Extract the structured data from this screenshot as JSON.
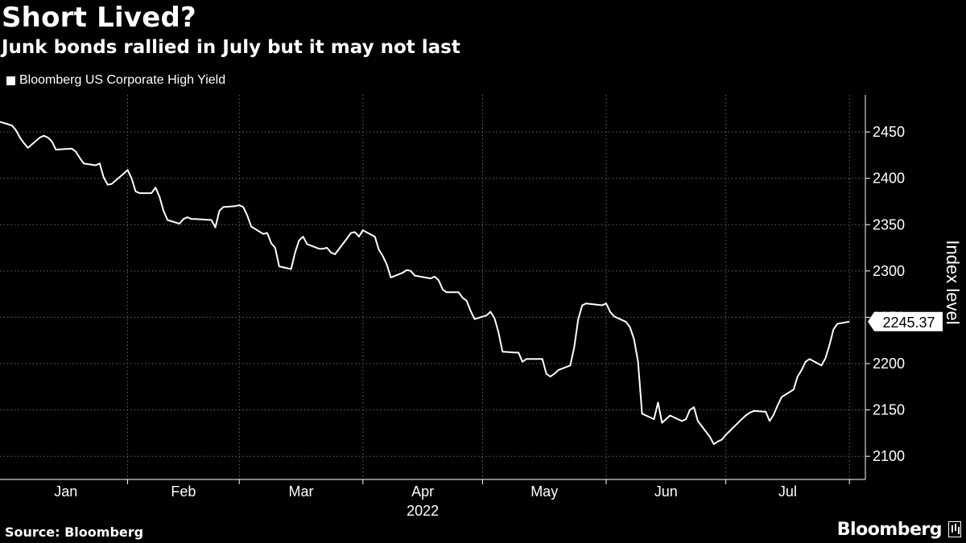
{
  "header": {
    "title": "Short Lived?",
    "subtitle": "Junk bonds rallied in July but it may not last"
  },
  "footer": {
    "source": "Source: Bloomberg",
    "brand": "Bloomberg"
  },
  "colors": {
    "background": "#000000",
    "line": "#ffffff",
    "grid": "#666666"
  },
  "chart_data": {
    "type": "line",
    "title": "Short Lived?",
    "subtitle": "Junk bonds rallied in July but it may not last",
    "ylabel": "Index level",
    "xlabel": "2022",
    "ylim": [
      2075,
      2490
    ],
    "yticks": [
      2100,
      2150,
      2200,
      2250,
      2300,
      2350,
      2400,
      2450
    ],
    "x_ticks": [
      {
        "date": "2022-01-01",
        "label": "Jan"
      },
      {
        "date": "2022-02-01",
        "label": "Feb"
      },
      {
        "date": "2022-03-01",
        "label": "Mar"
      },
      {
        "date": "2022-04-01",
        "label": "Apr"
      },
      {
        "date": "2022-05-01",
        "label": "May"
      },
      {
        "date": "2022-06-01",
        "label": "Jun"
      },
      {
        "date": "2022-07-01",
        "label": "Jul"
      }
    ],
    "x_range": [
      "2021-12-31",
      "2022-08-05"
    ],
    "grid": true,
    "legend": "top-left",
    "last_value_label": "2245.37",
    "series": [
      {
        "name": "Bloomberg US Corporate High Yield",
        "color": "#ffffff",
        "points": [
          [
            "2021-12-31",
            2461
          ],
          [
            "2022-01-03",
            2457
          ],
          [
            "2022-01-04",
            2452
          ],
          [
            "2022-01-05",
            2444
          ],
          [
            "2022-01-06",
            2438
          ],
          [
            "2022-01-07",
            2433
          ],
          [
            "2022-01-10",
            2444
          ],
          [
            "2022-01-11",
            2446
          ],
          [
            "2022-01-12",
            2444
          ],
          [
            "2022-01-13",
            2440
          ],
          [
            "2022-01-14",
            2431
          ],
          [
            "2022-01-18",
            2432
          ],
          [
            "2022-01-19",
            2429
          ],
          [
            "2022-01-20",
            2422
          ],
          [
            "2022-01-21",
            2416
          ],
          [
            "2022-01-24",
            2414
          ],
          [
            "2022-01-25",
            2416
          ],
          [
            "2022-01-26",
            2401
          ],
          [
            "2022-01-27",
            2393
          ],
          [
            "2022-01-28",
            2394
          ],
          [
            "2022-01-31",
            2405
          ],
          [
            "2022-02-01",
            2409
          ],
          [
            "2022-02-02",
            2400
          ],
          [
            "2022-02-03",
            2386
          ],
          [
            "2022-02-04",
            2384
          ],
          [
            "2022-02-07",
            2384
          ],
          [
            "2022-02-08",
            2390
          ],
          [
            "2022-02-09",
            2380
          ],
          [
            "2022-02-10",
            2365
          ],
          [
            "2022-02-11",
            2355
          ],
          [
            "2022-02-14",
            2351
          ],
          [
            "2022-02-15",
            2356
          ],
          [
            "2022-02-16",
            2358
          ],
          [
            "2022-02-17",
            2356
          ],
          [
            "2022-02-18",
            2356
          ],
          [
            "2022-02-22",
            2355
          ],
          [
            "2022-02-23",
            2347
          ],
          [
            "2022-02-24",
            2365
          ],
          [
            "2022-02-25",
            2369
          ],
          [
            "2022-02-28",
            2370
          ],
          [
            "2022-03-01",
            2371
          ],
          [
            "2022-03-02",
            2369
          ],
          [
            "2022-03-03",
            2360
          ],
          [
            "2022-03-04",
            2348
          ],
          [
            "2022-03-07",
            2340
          ],
          [
            "2022-03-08",
            2341
          ],
          [
            "2022-03-09",
            2330
          ],
          [
            "2022-03-10",
            2325
          ],
          [
            "2022-03-11",
            2305
          ],
          [
            "2022-03-14",
            2302
          ],
          [
            "2022-03-15",
            2320
          ],
          [
            "2022-03-16",
            2333
          ],
          [
            "2022-03-17",
            2337
          ],
          [
            "2022-03-18",
            2329
          ],
          [
            "2022-03-21",
            2324
          ],
          [
            "2022-03-22",
            2324
          ],
          [
            "2022-03-23",
            2325
          ],
          [
            "2022-03-24",
            2320
          ],
          [
            "2022-03-25",
            2318
          ],
          [
            "2022-03-28",
            2335
          ],
          [
            "2022-03-29",
            2341
          ],
          [
            "2022-03-30",
            2342
          ],
          [
            "2022-03-31",
            2337
          ],
          [
            "2022-04-01",
            2344
          ],
          [
            "2022-04-04",
            2337
          ],
          [
            "2022-04-05",
            2323
          ],
          [
            "2022-04-06",
            2316
          ],
          [
            "2022-04-07",
            2307
          ],
          [
            "2022-04-08",
            2293
          ],
          [
            "2022-04-11",
            2298
          ],
          [
            "2022-04-12",
            2301
          ],
          [
            "2022-04-13",
            2300
          ],
          [
            "2022-04-14",
            2295
          ],
          [
            "2022-04-18",
            2292
          ],
          [
            "2022-04-19",
            2294
          ],
          [
            "2022-04-20",
            2290
          ],
          [
            "2022-04-21",
            2280
          ],
          [
            "2022-04-22",
            2277
          ],
          [
            "2022-04-25",
            2277
          ],
          [
            "2022-04-26",
            2271
          ],
          [
            "2022-04-27",
            2268
          ],
          [
            "2022-04-28",
            2257
          ],
          [
            "2022-04-29",
            2248
          ],
          [
            "2022-05-02",
            2252
          ],
          [
            "2022-05-03",
            2256
          ],
          [
            "2022-05-04",
            2249
          ],
          [
            "2022-05-05",
            2234
          ],
          [
            "2022-05-06",
            2213
          ],
          [
            "2022-05-09",
            2212
          ],
          [
            "2022-05-10",
            2212
          ],
          [
            "2022-05-11",
            2202
          ],
          [
            "2022-05-12",
            2205
          ],
          [
            "2022-05-13",
            2205
          ],
          [
            "2022-05-16",
            2205
          ],
          [
            "2022-05-17",
            2189
          ],
          [
            "2022-05-18",
            2186
          ],
          [
            "2022-05-19",
            2189
          ],
          [
            "2022-05-20",
            2193
          ],
          [
            "2022-05-23",
            2198
          ],
          [
            "2022-05-24",
            2218
          ],
          [
            "2022-05-25",
            2248
          ],
          [
            "2022-05-26",
            2263
          ],
          [
            "2022-05-27",
            2265
          ],
          [
            "2022-05-31",
            2263
          ],
          [
            "2022-06-01",
            2265
          ],
          [
            "2022-06-02",
            2256
          ],
          [
            "2022-06-03",
            2251
          ],
          [
            "2022-06-06",
            2245
          ],
          [
            "2022-06-07",
            2239
          ],
          [
            "2022-06-08",
            2226
          ],
          [
            "2022-06-09",
            2202
          ],
          [
            "2022-06-10",
            2146
          ],
          [
            "2022-06-13",
            2140
          ],
          [
            "2022-06-14",
            2158
          ],
          [
            "2022-06-15",
            2136
          ],
          [
            "2022-06-16",
            2140
          ],
          [
            "2022-06-17",
            2144
          ],
          [
            "2022-06-20",
            2138
          ],
          [
            "2022-06-21",
            2140
          ],
          [
            "2022-06-22",
            2150
          ],
          [
            "2022-06-23",
            2153
          ],
          [
            "2022-06-24",
            2138
          ],
          [
            "2022-06-27",
            2121
          ],
          [
            "2022-06-28",
            2113
          ],
          [
            "2022-06-29",
            2116
          ],
          [
            "2022-06-30",
            2118
          ],
          [
            "2022-07-01",
            2123
          ],
          [
            "2022-07-05",
            2140
          ],
          [
            "2022-07-06",
            2144
          ],
          [
            "2022-07-07",
            2147
          ],
          [
            "2022-07-08",
            2149
          ],
          [
            "2022-07-11",
            2148
          ],
          [
            "2022-07-12",
            2138
          ],
          [
            "2022-07-13",
            2145
          ],
          [
            "2022-07-14",
            2155
          ],
          [
            "2022-07-15",
            2164
          ],
          [
            "2022-07-18",
            2172
          ],
          [
            "2022-07-19",
            2186
          ],
          [
            "2022-07-20",
            2193
          ],
          [
            "2022-07-21",
            2202
          ],
          [
            "2022-07-22",
            2205
          ],
          [
            "2022-07-25",
            2198
          ],
          [
            "2022-07-26",
            2206
          ],
          [
            "2022-07-27",
            2220
          ],
          [
            "2022-07-28",
            2237
          ],
          [
            "2022-07-29",
            2243
          ],
          [
            "2022-08-01",
            2245.37
          ]
        ]
      }
    ]
  }
}
